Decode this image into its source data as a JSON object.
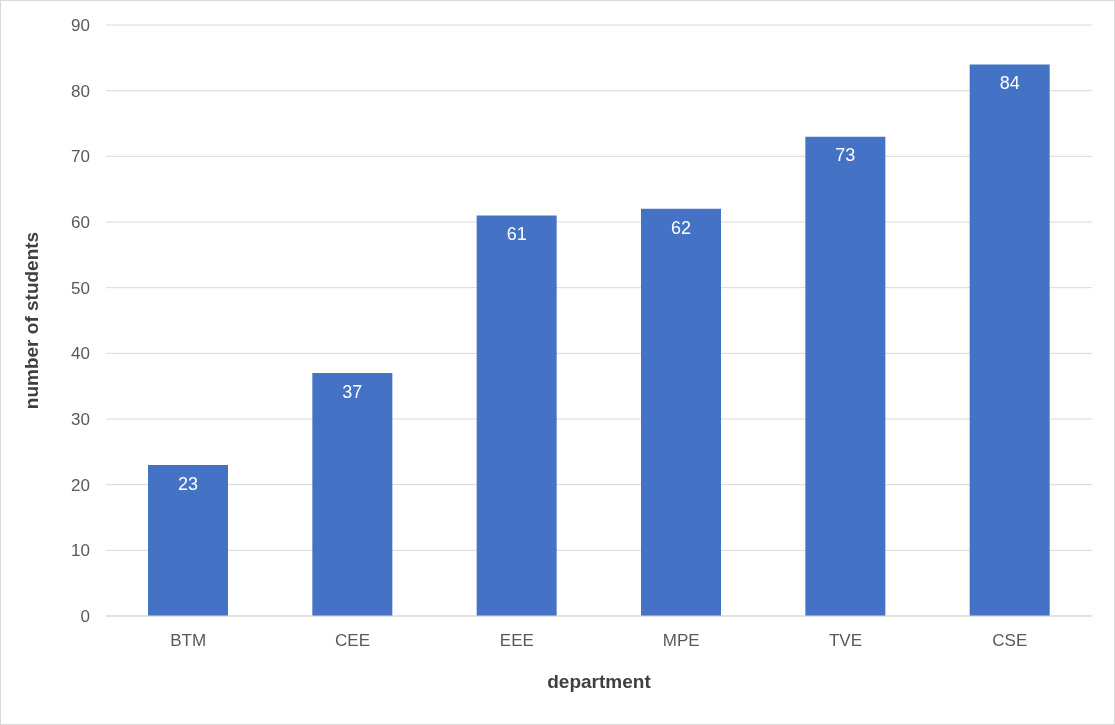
{
  "chart_data": {
    "type": "bar",
    "xlabel": "department",
    "ylabel": "number of students",
    "categories": [
      "BTM",
      "CEE",
      "EEE",
      "MPE",
      "TVE",
      "CSE"
    ],
    "values": [
      23,
      37,
      61,
      62,
      73,
      84
    ],
    "color": "#4472c4",
    "ylim": [
      0,
      90
    ],
    "yticks": [
      0,
      10,
      20,
      30,
      40,
      50,
      60,
      70,
      80,
      90
    ],
    "grid": "y",
    "data_labels": true
  }
}
